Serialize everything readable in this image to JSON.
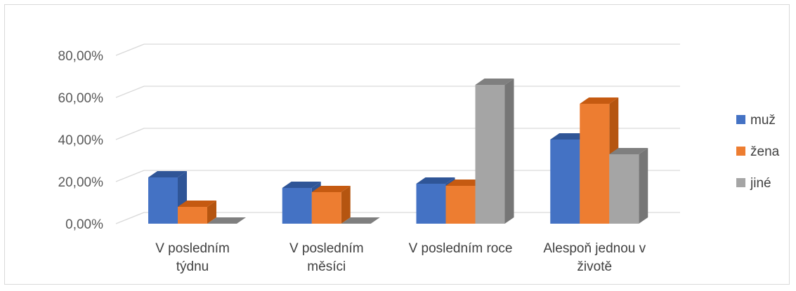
{
  "chart_data": {
    "type": "bar",
    "title": "",
    "xlabel": "",
    "ylabel": "",
    "categories": [
      [
        "V posledním",
        "týdnu"
      ],
      [
        "V posledním",
        "měsíci"
      ],
      [
        "V posledním roce"
      ],
      [
        "Alespoň jednou v",
        "životě"
      ]
    ],
    "series": [
      {
        "name": "muž",
        "values": [
          0.22,
          0.17,
          0.19,
          0.4
        ],
        "color": "#4472c4",
        "top": "#2f5597",
        "side": "#2f5597"
      },
      {
        "name": "žena",
        "values": [
          0.08,
          0.15,
          0.18,
          0.57
        ],
        "color": "#ed7d31",
        "top": "#c55a11",
        "side": "#b55510"
      },
      {
        "name": "jiné",
        "values": [
          0.0,
          0.0,
          0.66,
          0.33
        ],
        "color": "#a5a5a5",
        "top": "#7f7f7f",
        "side": "#767676"
      }
    ],
    "y_ticks": [
      "0,00%",
      "20,00%",
      "40,00%",
      "60,00%",
      "80,00%"
    ],
    "ylim": [
      0,
      0.8
    ],
    "grid": true,
    "legend_position": "right",
    "style": "3d-clustered-column"
  }
}
